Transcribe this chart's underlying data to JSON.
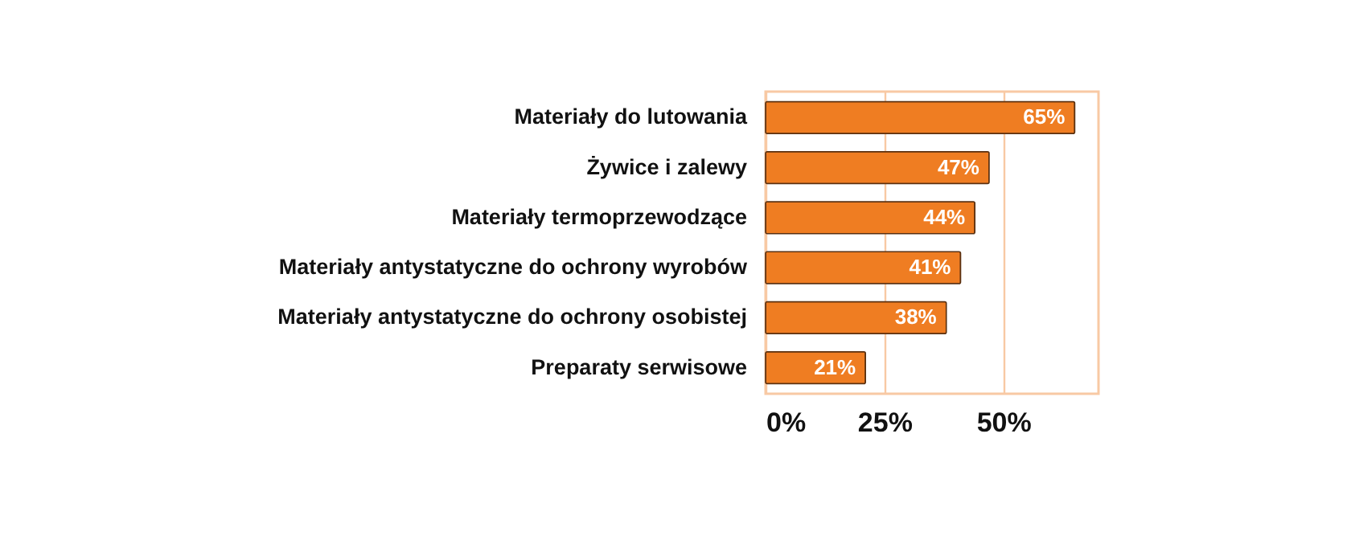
{
  "chart_data": {
    "type": "bar",
    "orientation": "horizontal",
    "categories": [
      "Materiały do lutowania",
      "Żywice i zalewy",
      "Materiały termoprzewodzące",
      "Materiały antystatyczne do ochrony wyrobów",
      "Materiały antystatyczne do ochrony osobistej",
      "Preparaty serwisowe"
    ],
    "values": [
      65,
      47,
      44,
      41,
      38,
      21
    ],
    "value_labels": [
      "65%",
      "47%",
      "44%",
      "41%",
      "38%",
      "21%"
    ],
    "color": "#ef7d22",
    "xlim": [
      0,
      70
    ],
    "xticks": [
      {
        "value": 0,
        "label": "0%"
      },
      {
        "value": 25,
        "label": "25%"
      },
      {
        "value": 50,
        "label": "50%"
      }
    ],
    "grid": "x"
  }
}
